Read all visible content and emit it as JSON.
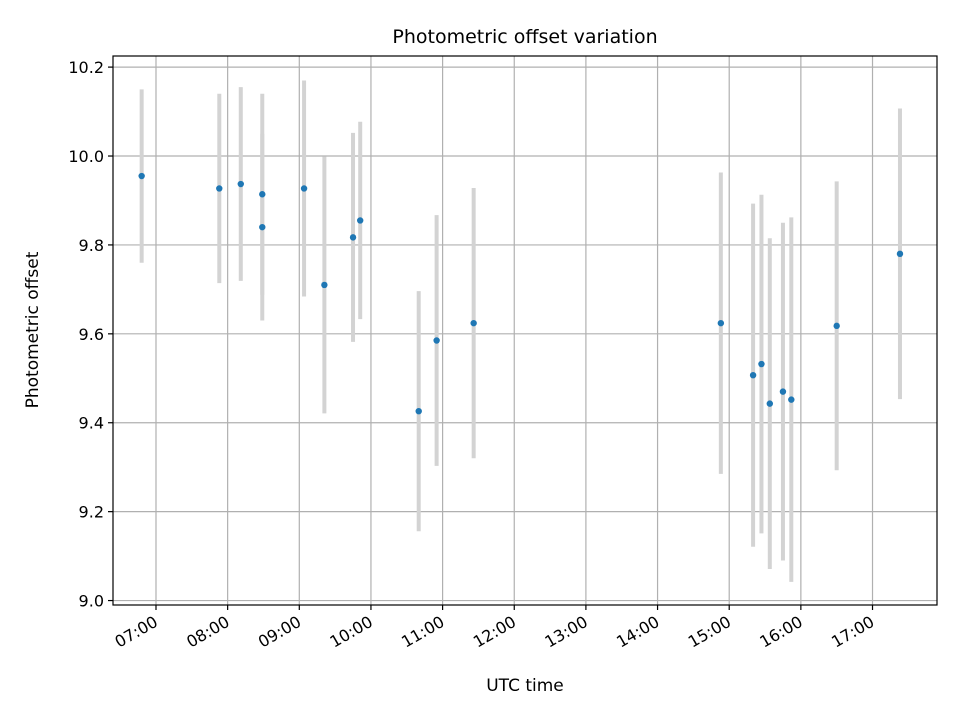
{
  "chart_data": {
    "type": "scatter",
    "title": "Photometric offset variation",
    "xlabel": "UTC time",
    "ylabel": "Photometric offset",
    "grid": true,
    "x_ticks": [
      "07:00",
      "08:00",
      "09:00",
      "10:00",
      "11:00",
      "12:00",
      "13:00",
      "14:00",
      "15:00",
      "16:00",
      "17:00"
    ],
    "y_ticks": [
      "9.0",
      "9.2",
      "9.4",
      "9.6",
      "9.8",
      "10.0",
      "10.2"
    ],
    "xlim": [
      "06:24",
      "17:54"
    ],
    "ylim": [
      8.99,
      10.225
    ],
    "colors": {
      "point": "#1f77b4",
      "errorbar": "#d3d3d3",
      "grid": "#b0b0b0"
    },
    "points": [
      {
        "x": "06:48",
        "y": 9.955,
        "err": 0.195
      },
      {
        "x": "07:53",
        "y": 9.927,
        "err": 0.213
      },
      {
        "x": "08:11",
        "y": 9.937,
        "err": 0.218
      },
      {
        "x": "08:29",
        "y": 9.914,
        "err": 0.226
      },
      {
        "x": "08:29",
        "y": 9.84,
        "err": 0.21
      },
      {
        "x": "09:04",
        "y": 9.927,
        "err": 0.243
      },
      {
        "x": "09:21",
        "y": 9.71,
        "err": 0.289
      },
      {
        "x": "09:45",
        "y": 9.817,
        "err": 0.235
      },
      {
        "x": "09:51",
        "y": 9.855,
        "err": 0.222
      },
      {
        "x": "10:40",
        "y": 9.426,
        "err": 0.27
      },
      {
        "x": "10:55",
        "y": 9.585,
        "err": 0.282
      },
      {
        "x": "11:26",
        "y": 9.624,
        "err": 0.304
      },
      {
        "x": "14:53",
        "y": 9.624,
        "err": 0.339
      },
      {
        "x": "15:20",
        "y": 9.507,
        "err": 0.386
      },
      {
        "x": "15:27",
        "y": 9.532,
        "err": 0.381
      },
      {
        "x": "15:34",
        "y": 9.443,
        "err": 0.372
      },
      {
        "x": "15:45",
        "y": 9.47,
        "err": 0.38
      },
      {
        "x": "15:52",
        "y": 9.452,
        "err": 0.41
      },
      {
        "x": "16:30",
        "y": 9.618,
        "err": 0.325
      },
      {
        "x": "17:23",
        "y": 9.78,
        "err": 0.327
      }
    ]
  }
}
